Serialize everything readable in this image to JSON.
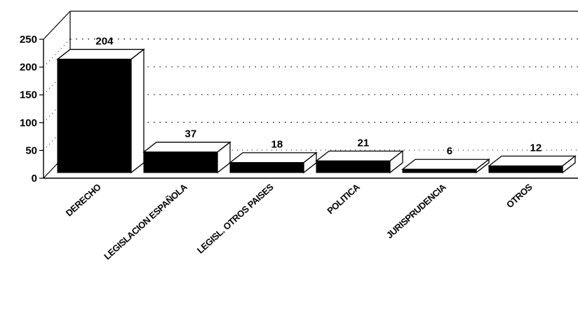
{
  "chart_data": {
    "type": "bar",
    "categories": [
      "DERECHO",
      "LEGISLACION ESPAÑOLA",
      "LEGISL. OTROS PAISES",
      "POLITICA",
      "JURISPRUDENCIA",
      "OTROS"
    ],
    "values": [
      204,
      37,
      18,
      21,
      6,
      12
    ],
    "data_labels": [
      "204",
      "37",
      "18",
      "21",
      "6",
      "12"
    ],
    "yticks": [
      0,
      50,
      100,
      150,
      200,
      250
    ],
    "ylim": [
      0,
      250
    ],
    "title": "",
    "xlabel": "",
    "ylabel": "",
    "grid": "dotted",
    "style": "3d",
    "bar_color": "#000000",
    "bar_face_color": "#ffffff"
  }
}
